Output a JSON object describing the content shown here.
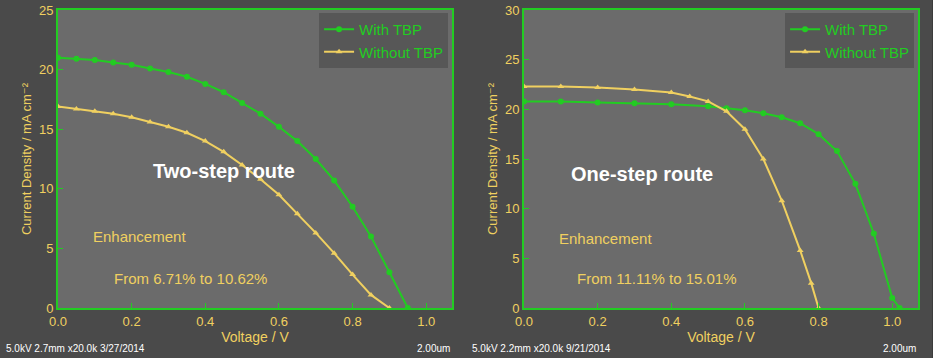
{
  "chart_data": [
    {
      "type": "line",
      "x_label": "Voltage / V",
      "y_label": "Current Density / mA cm⁻²",
      "xlim": [
        0,
        1.07
      ],
      "ylim": [
        0,
        25
      ],
      "xticks": [
        {
          "value": 0,
          "label": "0.0"
        },
        {
          "value": 0.2,
          "label": "0.2"
        },
        {
          "value": 0.4,
          "label": "0.4"
        },
        {
          "value": 0.6,
          "label": "0.6"
        },
        {
          "value": 0.8,
          "label": "0.8"
        },
        {
          "value": 1.0,
          "label": "1.0"
        }
      ],
      "yticks": [
        0,
        5,
        10,
        15,
        20,
        25
      ],
      "grid": false,
      "legend": "upper right",
      "series": [
        {
          "name": "With TBP",
          "color": "#22cc22",
          "marker": "circle",
          "line_style": "solid",
          "x": [
            0,
            0.05,
            0.1,
            0.15,
            0.2,
            0.25,
            0.3,
            0.35,
            0.4,
            0.45,
            0.5,
            0.55,
            0.6,
            0.65,
            0.7,
            0.75,
            0.8,
            0.85,
            0.9,
            0.95
          ],
          "values": [
            21.0,
            20.9,
            20.8,
            20.6,
            20.4,
            20.1,
            19.8,
            19.4,
            18.8,
            18.1,
            17.2,
            16.3,
            15.2,
            14.0,
            12.5,
            10.7,
            8.5,
            6.0,
            3.0,
            0
          ]
        },
        {
          "name": "Without TBP",
          "color": "#f0d060",
          "marker": "triangle-up",
          "line_style": "solid",
          "x": [
            0,
            0.05,
            0.1,
            0.15,
            0.2,
            0.25,
            0.3,
            0.35,
            0.4,
            0.45,
            0.5,
            0.55,
            0.6,
            0.65,
            0.7,
            0.75,
            0.8,
            0.85,
            0.9
          ],
          "values": [
            16.9,
            16.7,
            16.5,
            16.3,
            16.0,
            15.6,
            15.2,
            14.7,
            14.0,
            13.1,
            12.0,
            10.8,
            9.5,
            7.9,
            6.3,
            4.6,
            2.8,
            1.1,
            0
          ]
        }
      ],
      "annotations": [
        {
          "text": "Two-step route",
          "color": "#ffffff"
        },
        {
          "text": "Enhancement",
          "color": "#f0d060"
        },
        {
          "text": "From 6.71% to 10.62%",
          "color": "#f0d060"
        },
        {
          "text": "5.0kV 2.7mm x20.0k 3/27/2014",
          "color": "#ffffff"
        },
        {
          "text": "2.00um",
          "color": "#ffffff"
        }
      ]
    },
    {
      "type": "line",
      "x_label": "Voltage / V",
      "y_label": "Current Density / mA cm⁻²",
      "xlim": [
        0,
        1.07
      ],
      "ylim": [
        0,
        30
      ],
      "xticks": [
        {
          "value": 0,
          "label": "0.0"
        },
        {
          "value": 0.2,
          "label": "0.2"
        },
        {
          "value": 0.4,
          "label": "0.4"
        },
        {
          "value": 0.6,
          "label": "0.6"
        },
        {
          "value": 0.8,
          "label": "0.8"
        },
        {
          "value": 1.0,
          "label": "1.0"
        }
      ],
      "yticks": [
        0,
        5,
        10,
        15,
        20,
        25,
        30
      ],
      "grid": false,
      "legend": "upper right",
      "series": [
        {
          "name": "With TBP",
          "color": "#22cc22",
          "marker": "circle",
          "line_style": "solid",
          "x": [
            0,
            0.1,
            0.2,
            0.3,
            0.4,
            0.5,
            0.55,
            0.6,
            0.65,
            0.7,
            0.75,
            0.8,
            0.85,
            0.9,
            0.95,
            1.0,
            1.02
          ],
          "values": [
            20.8,
            20.8,
            20.7,
            20.6,
            20.5,
            20.3,
            20.1,
            19.9,
            19.6,
            19.2,
            18.6,
            17.5,
            15.8,
            12.5,
            7.5,
            1.0,
            0
          ]
        },
        {
          "name": "Without TBP",
          "color": "#f0d060",
          "marker": "triangle-up",
          "line_style": "solid",
          "x": [
            0,
            0.1,
            0.2,
            0.3,
            0.4,
            0.45,
            0.5,
            0.55,
            0.6,
            0.65,
            0.7,
            0.75,
            0.78,
            0.8
          ],
          "values": [
            22.3,
            22.3,
            22.2,
            22.0,
            21.7,
            21.3,
            20.8,
            19.8,
            18.0,
            15.0,
            10.8,
            5.8,
            2.5,
            0
          ]
        }
      ],
      "annotations": [
        {
          "text": "One-step route",
          "color": "#ffffff"
        },
        {
          "text": "Enhancement",
          "color": "#f0d060"
        },
        {
          "text": "From 11.11% to 15.01%",
          "color": "#f0d060"
        },
        {
          "text": "5.0kV 2.2mm x20.0k 9/21/2014",
          "color": "#ffffff"
        },
        {
          "text": "2.00um",
          "color": "#ffffff"
        }
      ]
    }
  ]
}
